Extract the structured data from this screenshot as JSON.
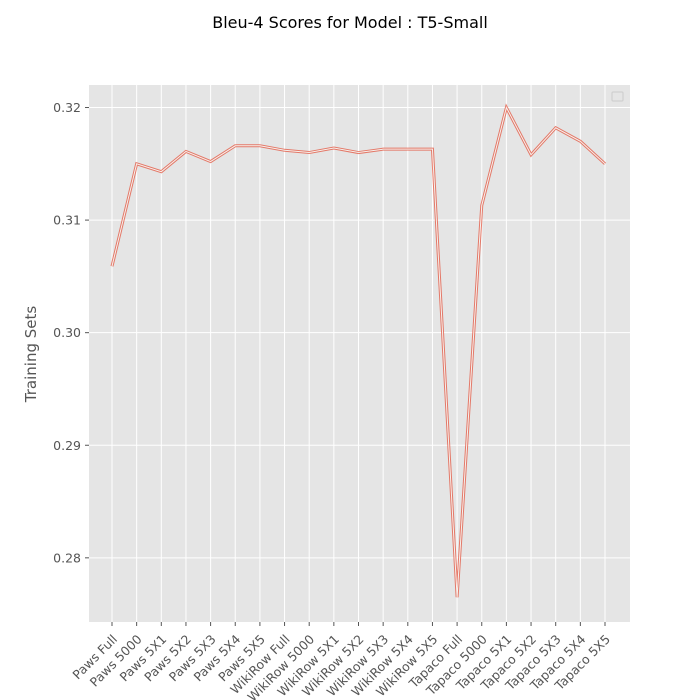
{
  "chart_data": {
    "type": "line",
    "title": "Bleu-4 Scores for Model : T5-Small",
    "xlabel": "",
    "ylabel": "Training Sets",
    "categories": [
      "Paws Full",
      "Paws 5000",
      "Paws 5X1",
      "Paws 5X2",
      "Paws 5X3",
      "Paws 5X4",
      "Paws 5X5",
      "WikiRow Full",
      "WikiRow 5000",
      "WikiRow 5X1",
      "WikiRow 5X2",
      "WikiRow 5X3",
      "WikiRow 5X4",
      "WikiRow 5X5",
      "Tapaco Full",
      "Tapaco 5000",
      "Tapaco 5X1",
      "Tapaco 5X2",
      "Tapaco 5X3",
      "Tapaco 5X4",
      "Tapaco 5X5"
    ],
    "series": [
      {
        "values": [
          0.3059,
          0.315,
          0.3143,
          0.3161,
          0.3152,
          0.3166,
          0.3166,
          0.3162,
          0.316,
          0.3164,
          0.316,
          0.3163,
          0.3163,
          0.3163,
          0.2765,
          0.3113,
          0.32,
          0.3158,
          0.3182,
          0.317,
          0.315
        ]
      }
    ],
    "yticks": [
      0.28,
      0.29,
      0.3,
      0.31,
      0.32
    ],
    "ylim": [
      0.2743,
      0.322
    ],
    "grid": true,
    "legend": "top-right",
    "colors": {
      "background": "#e5e5e5",
      "grid": "#ffffff",
      "line": "#e24a33"
    }
  }
}
